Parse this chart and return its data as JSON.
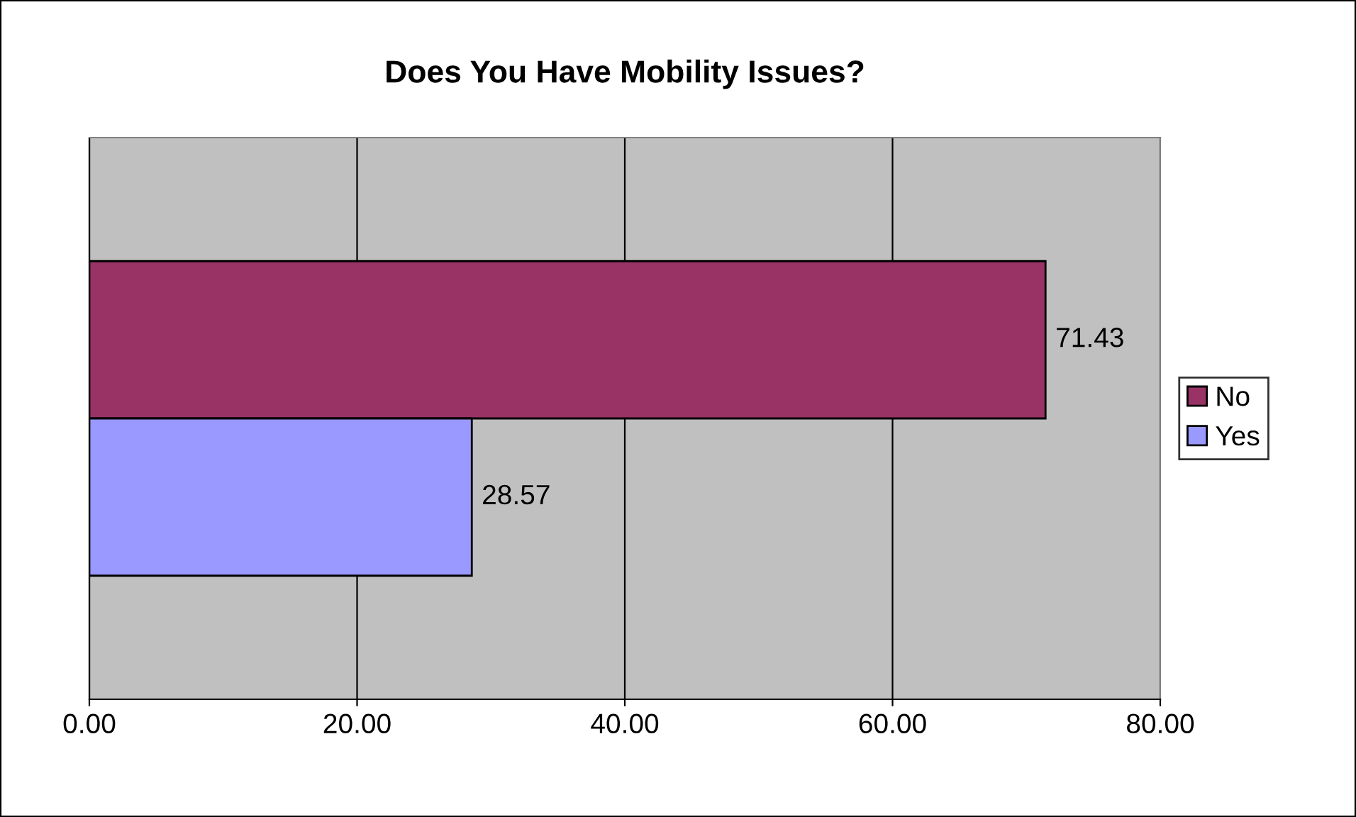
{
  "chart_data": {
    "type": "bar",
    "orientation": "horizontal",
    "title": "Does You Have Mobility Issues?",
    "categories": [
      null
    ],
    "series": [
      {
        "name": "No",
        "color": "#993366",
        "values": [
          71.43
        ]
      },
      {
        "name": "Yes",
        "color": "#9999ff",
        "values": [
          28.57
        ]
      }
    ],
    "xlim": [
      0,
      80
    ],
    "xticks": [
      {
        "value": 0,
        "label": "0.00"
      },
      {
        "value": 20,
        "label": "20.00"
      },
      {
        "value": 40,
        "label": "40.00"
      },
      {
        "value": 60,
        "label": "60.00"
      },
      {
        "value": 80,
        "label": "80.00"
      }
    ],
    "grid": "x",
    "legend": "right",
    "data_labels": true
  }
}
